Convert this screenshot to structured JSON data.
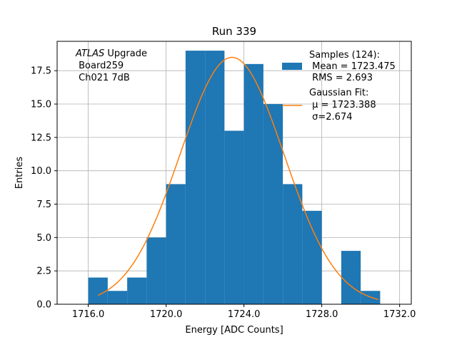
{
  "chart_data": {
    "type": "bar",
    "title": "Run 339",
    "xlabel": "Energy [ADC Counts]",
    "ylabel": "Entries",
    "xlim": [
      1714.4,
      1732.6
    ],
    "ylim": [
      0,
      19.7
    ],
    "x_ticks": [
      1716.0,
      1720.0,
      1724.0,
      1728.0,
      1732.0
    ],
    "x_tick_labels": [
      "1716.0",
      "1720.0",
      "1724.0",
      "1728.0",
      "1732.0"
    ],
    "y_ticks": [
      0,
      2.5,
      5,
      7.5,
      10,
      12.5,
      15,
      17.5
    ],
    "y_tick_labels": [
      "0.0",
      "2.5",
      "5.0",
      "7.5",
      "10.0",
      "12.5",
      "15.0",
      "17.5"
    ],
    "grid": true,
    "bin_edges": [
      1716,
      1717,
      1718,
      1719,
      1720,
      1721,
      1722,
      1723,
      1724,
      1725,
      1726,
      1727,
      1728,
      1729,
      1730,
      1731
    ],
    "values": [
      2,
      1,
      2,
      5,
      9,
      19,
      19,
      13,
      18,
      15,
      9,
      7,
      0,
      4,
      1
    ],
    "fit": {
      "type": "gaussian",
      "mu": 1723.388,
      "sigma": 2.674,
      "amplitude": 18.5,
      "x_range": [
        1716.5,
        1730.9
      ]
    },
    "legend": {
      "position": "top-right",
      "entries": [
        {
          "kind": "patch",
          "color": "#1f77b4",
          "lines": [
            "Samples (124):",
            " Mean = 1723.475",
            " RMS = 2.693"
          ]
        },
        {
          "kind": "line",
          "color": "#ff7f0e",
          "lines": [
            "Gaussian Fit:",
            " μ = 1723.388",
            " σ=2.674"
          ]
        }
      ]
    },
    "annotation": {
      "position": "top-left",
      "italic": "ATLAS",
      "rest": " Upgrade",
      "lines": [
        " Board259",
        " Ch021 7dB"
      ]
    },
    "colors": {
      "bars": "#1f77b4",
      "fit": "#ff7f0e",
      "grid": "#b0b0b0"
    }
  }
}
